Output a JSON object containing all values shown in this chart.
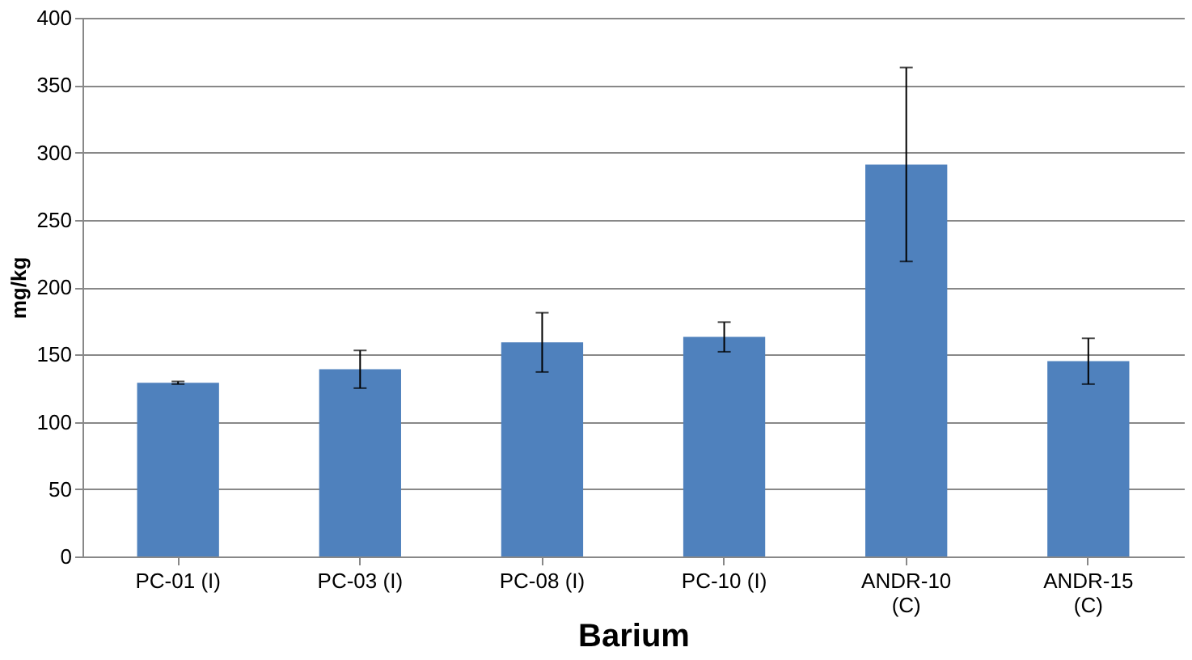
{
  "chart_data": {
    "type": "bar",
    "xlabel": "Barium",
    "ylabel": "mg/kg",
    "categories": [
      "PC-01 (I)",
      "PC-03 (I)",
      "PC-08 (I)",
      "PC-10 (I)",
      "ANDR-10 (C)",
      "ANDR-15 (C)"
    ],
    "values": [
      129,
      139,
      159,
      163,
      291,
      145
    ],
    "errors": [
      1,
      14,
      22,
      11,
      72,
      17
    ],
    "color": "#4f81bd",
    "ylim": [
      0,
      400
    ],
    "yticks": [
      0,
      50,
      100,
      150,
      200,
      250,
      300,
      350,
      400
    ],
    "grid": "y"
  }
}
